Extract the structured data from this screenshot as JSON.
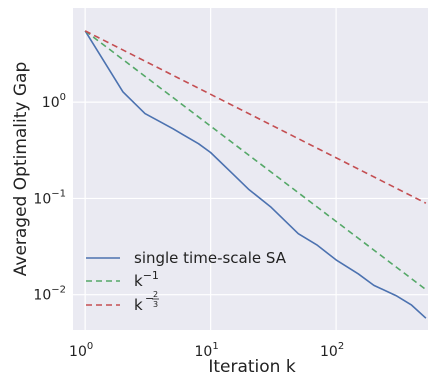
{
  "chart_data": {
    "type": "line",
    "xlabel": "Iteration k",
    "ylabel": "Averaged Optimality Gap",
    "xscale": "log",
    "yscale": "log",
    "xlim": [
      0.8,
      540
    ],
    "ylim": [
      0.0043,
      9.5
    ],
    "grid": true,
    "legend_position": "lower-left",
    "xticks": [
      {
        "value": 1,
        "base": "10",
        "exp": "0"
      },
      {
        "value": 10,
        "base": "10",
        "exp": "1"
      },
      {
        "value": 100,
        "base": "10",
        "exp": "2"
      }
    ],
    "yticks": [
      {
        "value": 1,
        "base": "10",
        "exp": "0"
      },
      {
        "value": 0.1,
        "base": "10",
        "exp": "−1"
      },
      {
        "value": 0.01,
        "base": "10",
        "exp": "−2"
      }
    ],
    "series": [
      {
        "name": "single time-scale SA",
        "color": "#4c72b0",
        "style": "solid",
        "x": [
          1,
          2,
          3,
          4,
          5,
          6,
          8,
          10,
          15,
          20,
          30,
          50,
          70,
          100,
          150,
          200,
          300,
          400,
          520
        ],
        "y": [
          5.5,
          1.28,
          0.76,
          0.62,
          0.53,
          0.46,
          0.37,
          0.3,
          0.18,
          0.125,
          0.082,
          0.043,
          0.033,
          0.023,
          0.0165,
          0.0125,
          0.0098,
          0.0078,
          0.0057
        ]
      },
      {
        "name_base": "k",
        "name_exp": "−1",
        "color": "#55a868",
        "style": "dashed",
        "x": [
          1,
          520
        ],
        "y": [
          5.5,
          0.0113
        ]
      },
      {
        "name_base": "k",
        "name_exp_num": "2",
        "name_exp_den": "3",
        "color": "#c44e52",
        "style": "dashed",
        "x": [
          1,
          520
        ],
        "y": [
          5.5,
          0.0892
        ]
      }
    ]
  }
}
